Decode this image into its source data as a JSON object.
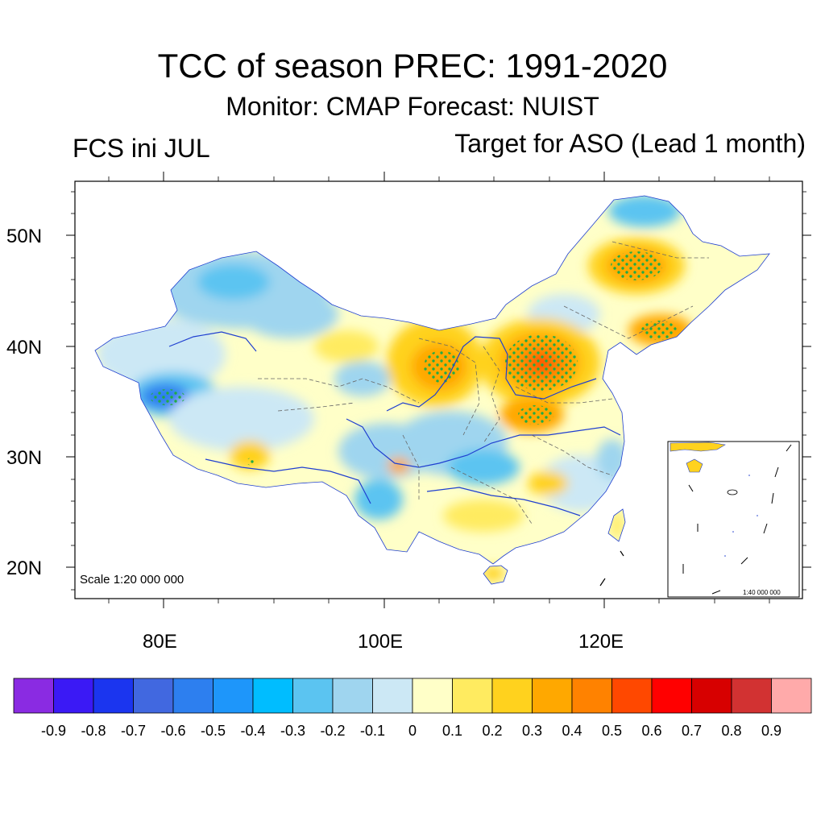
{
  "title": "TCC of season PREC: 1991-2020",
  "subtitle": "Monitor: CMAP   Forecast: NUIST",
  "left_label": "FCS ini JUL",
  "right_label": "Target for ASO (Lead 1 month)",
  "map": {
    "lat_labels": [
      "50N",
      "40N",
      "30N",
      "20N"
    ],
    "lon_labels": [
      "80E",
      "100E",
      "120E"
    ],
    "scale_text": "Scale 1:20 000 000",
    "inset_scale_text": "1:40 000 000",
    "stipple_color": "#22aa44",
    "coast_color": "#1f3fd0"
  },
  "colorbar": {
    "colors": [
      "#8a2be2",
      "#3b19f5",
      "#1b35ef",
      "#4168e0",
      "#2d7fef",
      "#1e96fa",
      "#00bdff",
      "#5bc4f1",
      "#9fd5ef",
      "#cce8f5",
      "#ffffc8",
      "#ffeb60",
      "#ffd21e",
      "#ffa800",
      "#ff8200",
      "#ff4800",
      "#ff0000",
      "#d70000",
      "#d23232",
      "#ffaaaa"
    ],
    "labels": [
      "-0.9",
      "-0.8",
      "-0.7",
      "-0.6",
      "-0.5",
      "-0.4",
      "-0.3",
      "-0.2",
      "-0.1",
      "0",
      "0.1",
      "0.2",
      "0.3",
      "0.4",
      "0.5",
      "0.6",
      "0.7",
      "0.8",
      "0.9"
    ]
  }
}
